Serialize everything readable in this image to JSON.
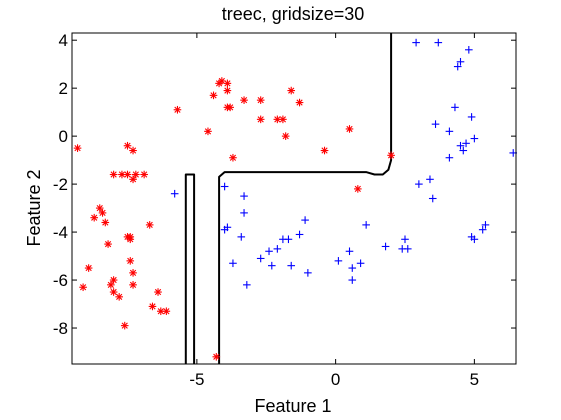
{
  "chart_data": {
    "type": "scatter",
    "title": "treec, gridsize=30",
    "xlabel": "Feature 1",
    "ylabel": "Feature 2",
    "xlim": [
      -9.5,
      6.5
    ],
    "ylim": [
      -9.5,
      4.3
    ],
    "xticks": [
      -5,
      0,
      5
    ],
    "xtick_labels": [
      "-5",
      "0",
      "5"
    ],
    "yticks": [
      -8,
      -6,
      -4,
      -2,
      0,
      2,
      4
    ],
    "ytick_labels": [
      "-8",
      "-6",
      "-4",
      "-2",
      "0",
      "2",
      "4"
    ],
    "grid": false,
    "legend": false,
    "colors": {
      "class_a": "#ff0000",
      "class_b": "#0000ff",
      "boundary": "#000000"
    },
    "series": [
      {
        "marker": "asterisk",
        "color": "#ff0000",
        "points": [
          [
            -9.3,
            -0.5
          ],
          [
            -9.1,
            -6.3
          ],
          [
            -8.9,
            -5.5
          ],
          [
            -8.7,
            -3.4
          ],
          [
            -8.5,
            -3.0
          ],
          [
            -8.4,
            -3.2
          ],
          [
            -8.3,
            -3.6
          ],
          [
            -8.2,
            -4.5
          ],
          [
            -8.1,
            -6.2
          ],
          [
            -8.0,
            -6.5
          ],
          [
            -8.0,
            -6.0
          ],
          [
            -8.0,
            -1.6
          ],
          [
            -7.8,
            -6.7
          ],
          [
            -7.7,
            -1.6
          ],
          [
            -7.6,
            -7.9
          ],
          [
            -7.5,
            -0.4
          ],
          [
            -7.5,
            -1.6
          ],
          [
            -7.5,
            -4.2
          ],
          [
            -7.4,
            -4.2
          ],
          [
            -7.4,
            -4.3
          ],
          [
            -7.4,
            -5.2
          ],
          [
            -7.3,
            -0.6
          ],
          [
            -7.3,
            -1.8
          ],
          [
            -7.3,
            -5.7
          ],
          [
            -7.3,
            -6.2
          ],
          [
            -7.2,
            -1.6
          ],
          [
            -6.9,
            -1.6
          ],
          [
            -6.7,
            -3.7
          ],
          [
            -6.6,
            -7.1
          ],
          [
            -6.4,
            -6.5
          ],
          [
            -6.3,
            -7.3
          ],
          [
            -6.1,
            -7.3
          ],
          [
            -5.7,
            1.1
          ],
          [
            -4.6,
            0.2
          ],
          [
            -4.4,
            1.7
          ],
          [
            -4.3,
            -9.2
          ],
          [
            -4.2,
            2.2
          ],
          [
            -4.1,
            2.3
          ],
          [
            -3.9,
            1.2
          ],
          [
            -3.9,
            1.9
          ],
          [
            -3.9,
            2.2
          ],
          [
            -3.8,
            1.2
          ],
          [
            -3.7,
            -0.9
          ],
          [
            -3.3,
            1.5
          ],
          [
            -2.7,
            1.5
          ],
          [
            -2.7,
            0.7
          ],
          [
            -2.1,
            0.7
          ],
          [
            -1.9,
            0.7
          ],
          [
            -1.8,
            0.0
          ],
          [
            -1.6,
            1.9
          ],
          [
            -1.3,
            1.4
          ],
          [
            -0.4,
            -0.6
          ],
          [
            0.5,
            0.3
          ],
          [
            0.8,
            -2.2
          ],
          [
            2.0,
            -0.8
          ]
        ]
      },
      {
        "marker": "plus",
        "color": "#0000ff",
        "points": [
          [
            -5.8,
            -2.4
          ],
          [
            -4.0,
            -2.1
          ],
          [
            -4.0,
            -3.9
          ],
          [
            -3.9,
            -3.8
          ],
          [
            -3.7,
            -5.3
          ],
          [
            -3.4,
            -4.2
          ],
          [
            -3.3,
            -2.5
          ],
          [
            -3.3,
            -3.2
          ],
          [
            -3.2,
            -6.2
          ],
          [
            -2.7,
            -5.1
          ],
          [
            -2.4,
            -4.8
          ],
          [
            -2.3,
            -5.4
          ],
          [
            -2.1,
            -4.7
          ],
          [
            -1.9,
            -4.3
          ],
          [
            -1.7,
            -4.3
          ],
          [
            -1.6,
            -5.4
          ],
          [
            -1.3,
            -4.1
          ],
          [
            -1.1,
            -3.5
          ],
          [
            -1.0,
            -5.7
          ],
          [
            0.1,
            -5.2
          ],
          [
            0.5,
            -4.8
          ],
          [
            0.6,
            -5.5
          ],
          [
            0.9,
            -5.3
          ],
          [
            0.6,
            -6.0
          ],
          [
            1.1,
            -3.7
          ],
          [
            1.8,
            -4.6
          ],
          [
            2.4,
            -4.7
          ],
          [
            2.5,
            -4.3
          ],
          [
            2.6,
            -4.7
          ],
          [
            2.9,
            3.9
          ],
          [
            3.0,
            -2.0
          ],
          [
            3.4,
            -1.8
          ],
          [
            3.5,
            -2.6
          ],
          [
            3.6,
            0.5
          ],
          [
            3.7,
            3.9
          ],
          [
            4.1,
            0.2
          ],
          [
            4.1,
            -0.9
          ],
          [
            4.3,
            1.2
          ],
          [
            4.4,
            2.9
          ],
          [
            4.5,
            3.1
          ],
          [
            4.5,
            -0.4
          ],
          [
            4.6,
            -0.6
          ],
          [
            4.7,
            -0.3
          ],
          [
            4.8,
            3.6
          ],
          [
            4.9,
            0.8
          ],
          [
            4.9,
            -4.2
          ],
          [
            5.0,
            -4.3
          ],
          [
            5.0,
            -0.1
          ],
          [
            5.3,
            -3.9
          ],
          [
            5.4,
            -3.7
          ],
          [
            6.4,
            -0.7
          ]
        ]
      }
    ],
    "boundary_paths": [
      [
        [
          -5.4,
          -9.5
        ],
        [
          -5.4,
          -1.6
        ],
        [
          -5.1,
          -1.6
        ],
        [
          -5.1,
          -9.5
        ]
      ],
      [
        [
          -4.2,
          -9.5
        ],
        [
          -4.2,
          -1.7
        ],
        [
          -4.0,
          -1.5
        ],
        [
          1.1,
          -1.5
        ],
        [
          1.4,
          -1.6
        ],
        [
          1.7,
          -1.6
        ],
        [
          1.9,
          -1.4
        ],
        [
          2.0,
          -1.0
        ],
        [
          2.0,
          4.3
        ]
      ]
    ]
  }
}
